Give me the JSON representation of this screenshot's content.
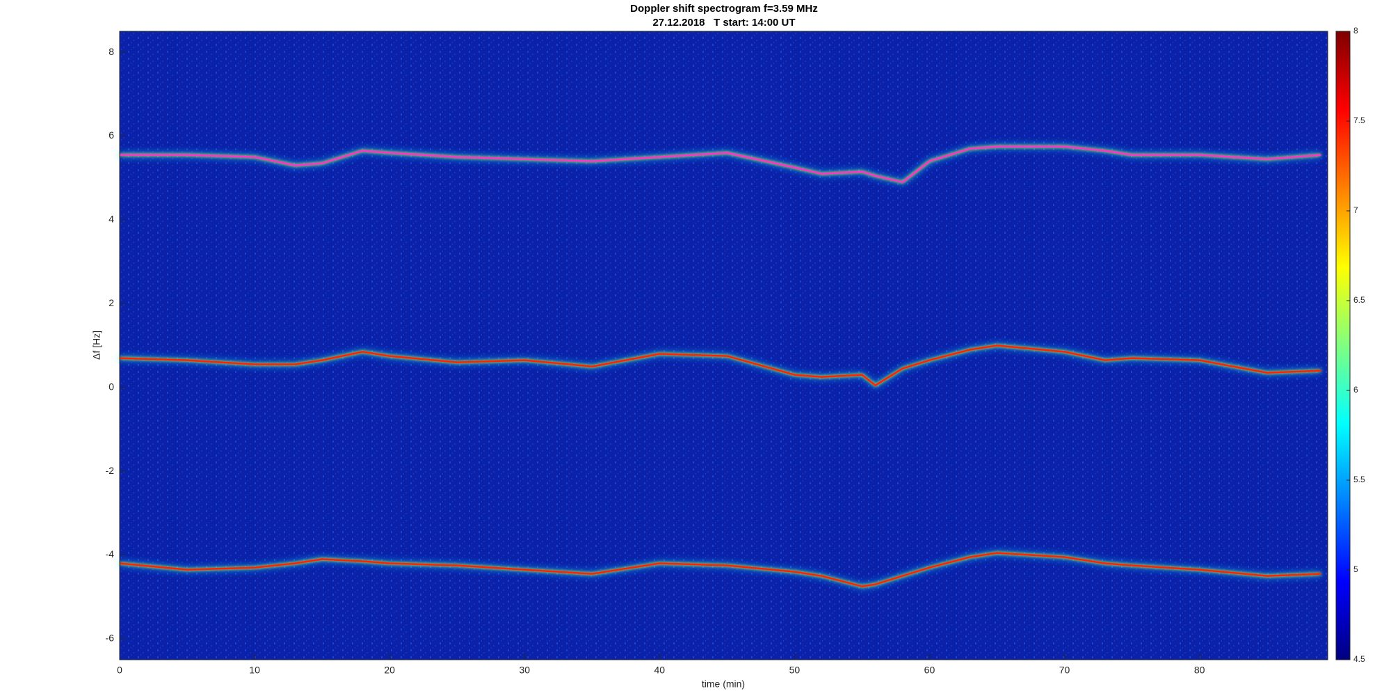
{
  "chart_data": {
    "type": "spectrogram",
    "title": "Doppler shift spectrogram f=3.59 MHz",
    "subtitle": "27.12.2018   T start: 14:00 UT",
    "x_label": "time (min)",
    "y_label": "Δf [Hz]",
    "x": [
      0,
      5,
      10,
      13,
      15,
      18,
      20,
      25,
      30,
      35,
      40,
      45,
      50,
      52,
      55,
      56,
      58,
      60,
      63,
      65,
      70,
      73,
      75,
      80,
      85,
      89
    ],
    "series": [
      {
        "color": "#ff33cc",
        "values": [
          5.55,
          5.55,
          5.5,
          5.3,
          5.35,
          5.65,
          5.6,
          5.5,
          5.45,
          5.4,
          5.5,
          5.6,
          5.25,
          5.1,
          5.15,
          5.05,
          4.9,
          5.4,
          5.7,
          5.75,
          5.75,
          5.65,
          5.55,
          5.55,
          5.45,
          5.55
        ]
      },
      {
        "color": "#ff2200",
        "values": [
          0.7,
          0.65,
          0.55,
          0.55,
          0.65,
          0.85,
          0.75,
          0.6,
          0.65,
          0.5,
          0.8,
          0.75,
          0.3,
          0.25,
          0.3,
          0.05,
          0.45,
          0.65,
          0.9,
          1.0,
          0.85,
          0.65,
          0.7,
          0.65,
          0.35,
          0.4
        ]
      },
      {
        "color": "#ff2200",
        "values": [
          -4.2,
          -4.35,
          -4.3,
          -4.2,
          -4.1,
          -4.15,
          -4.2,
          -4.25,
          -4.35,
          -4.45,
          -4.2,
          -4.25,
          -4.4,
          -4.5,
          -4.75,
          -4.7,
          -4.5,
          -4.3,
          -4.05,
          -3.95,
          -4.05,
          -4.2,
          -4.25,
          -4.35,
          -4.5,
          -4.45
        ]
      }
    ],
    "background_color": "#0b22a8",
    "xlim": [
      0,
      89.5
    ],
    "xticks": [
      0,
      10,
      20,
      30,
      40,
      50,
      60,
      70,
      80
    ],
    "ylim": [
      -6.5,
      8.5
    ],
    "yticks": [
      -6,
      -4,
      -2,
      0,
      2,
      4,
      6,
      8
    ],
    "colorbar": {
      "colormap": "jet",
      "lim": [
        4.5,
        8
      ],
      "ticks": [
        4.5,
        5,
        5.5,
        6,
        6.5,
        7,
        7.5,
        8
      ]
    }
  }
}
